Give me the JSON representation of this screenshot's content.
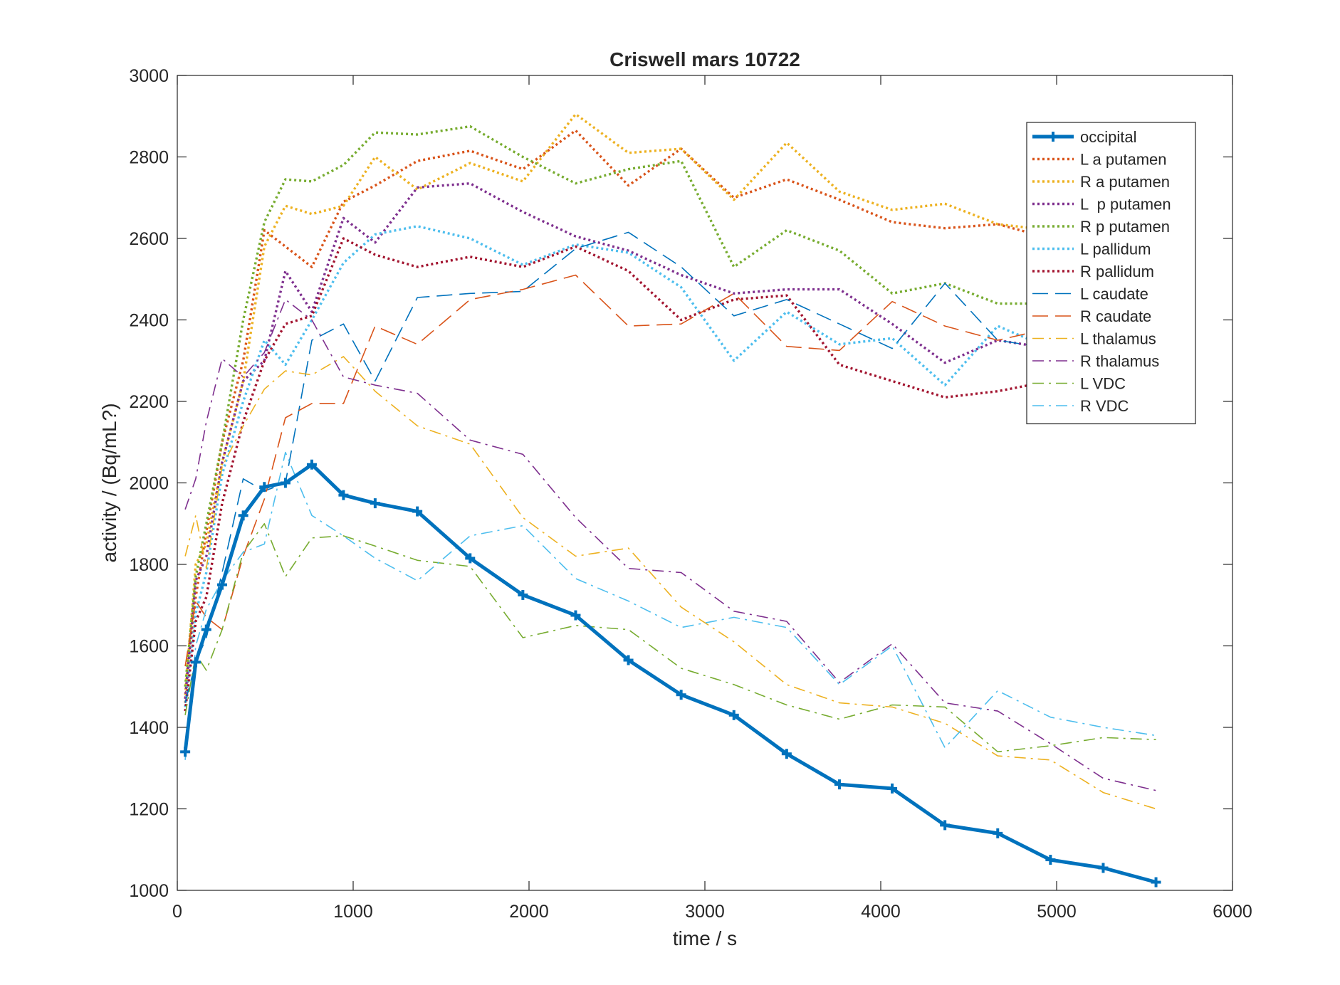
{
  "chart_data": {
    "type": "line",
    "title": "Criswell mars 10722",
    "xlabel": "time / s",
    "ylabel": "activity / (Bq/mL?)",
    "xlim": [
      0,
      6000
    ],
    "ylim": [
      1000,
      3000
    ],
    "xticks": [
      0,
      1000,
      2000,
      3000,
      4000,
      5000,
      6000
    ],
    "yticks": [
      1000,
      1200,
      1400,
      1600,
      1800,
      2000,
      2200,
      2400,
      2600,
      2800,
      3000
    ],
    "grid": false,
    "legend_position": "top-right",
    "x": [
      45,
      105,
      165,
      255,
      375,
      495,
      615,
      765,
      945,
      1125,
      1365,
      1665,
      1965,
      2265,
      2565,
      2865,
      3165,
      3465,
      3765,
      4065,
      4365,
      4665,
      4965,
      5265,
      5565
    ],
    "series": [
      {
        "name": "occipital",
        "color": "#0072BD",
        "style": "solid-bold-marker",
        "values": [
          1340,
          1560,
          1640,
          1750,
          1920,
          1990,
          2000,
          2045,
          1970,
          1950,
          1930,
          1815,
          1725,
          1675,
          1565,
          1480,
          1430,
          1335,
          1260,
          1250,
          1160,
          1140,
          1075,
          1055,
          1020
        ]
      },
      {
        "name": "L a putamen",
        "color": "#D95319",
        "style": "dotted",
        "values": [
          1460,
          1720,
          1880,
          2100,
          2300,
          2620,
          2580,
          2530,
          2690,
          2730,
          2790,
          2815,
          2770,
          2865,
          2730,
          2820,
          2700,
          2745,
          2695,
          2640,
          2625,
          2635,
          2600,
          2590,
          2580
        ]
      },
      {
        "name": "R a putamen",
        "color": "#EDB120",
        "style": "dotted",
        "values": [
          1480,
          1800,
          1850,
          2050,
          2250,
          2580,
          2680,
          2660,
          2680,
          2800,
          2720,
          2785,
          2740,
          2905,
          2810,
          2820,
          2695,
          2835,
          2715,
          2670,
          2685,
          2635,
          2620,
          2615,
          2600
        ]
      },
      {
        "name": "L  p putamen",
        "color": "#7E2F8E",
        "style": "dotted",
        "values": [
          1470,
          1760,
          1820,
          2050,
          2250,
          2300,
          2520,
          2420,
          2650,
          2590,
          2725,
          2735,
          2665,
          2605,
          2570,
          2510,
          2465,
          2475,
          2475,
          2390,
          2295,
          2350,
          2330,
          2310,
          2300
        ]
      },
      {
        "name": "R p putamen",
        "color": "#77AC30",
        "style": "dotted",
        "values": [
          1500,
          1770,
          1900,
          2100,
          2400,
          2640,
          2745,
          2740,
          2780,
          2860,
          2855,
          2875,
          2800,
          2735,
          2770,
          2790,
          2530,
          2620,
          2570,
          2465,
          2490,
          2440,
          2440,
          2430,
          2430
        ]
      },
      {
        "name": "L pallidum",
        "color": "#4DBEEE",
        "style": "dotted",
        "values": [
          1450,
          1680,
          1780,
          2020,
          2200,
          2350,
          2290,
          2400,
          2540,
          2610,
          2630,
          2600,
          2535,
          2585,
          2565,
          2480,
          2300,
          2420,
          2340,
          2355,
          2240,
          2385,
          2330,
          2310,
          2300
        ]
      },
      {
        "name": "R pallidum",
        "color": "#A2142F",
        "style": "dotted",
        "values": [
          1440,
          1660,
          1720,
          1950,
          2150,
          2300,
          2390,
          2410,
          2600,
          2560,
          2530,
          2555,
          2530,
          2580,
          2520,
          2400,
          2450,
          2460,
          2290,
          2250,
          2210,
          2225,
          2250,
          2240,
          2230
        ]
      },
      {
        "name": "L caudate",
        "color": "#0072BD",
        "style": "dashed",
        "values": [
          1460,
          1560,
          1620,
          1780,
          2010,
          1980,
          2000,
          2350,
          2390,
          2250,
          2455,
          2465,
          2470,
          2575,
          2615,
          2530,
          2410,
          2450,
          2390,
          2330,
          2490,
          2350,
          2330,
          2320,
          2310
        ]
      },
      {
        "name": "R caudate",
        "color": "#D95319",
        "style": "dashed",
        "values": [
          1550,
          1710,
          1670,
          1640,
          1820,
          1960,
          2160,
          2195,
          2195,
          2385,
          2340,
          2450,
          2475,
          2510,
          2385,
          2390,
          2465,
          2335,
          2325,
          2445,
          2385,
          2350,
          2380,
          2370,
          2360
        ]
      },
      {
        "name": "L thalamus",
        "color": "#EDB120",
        "style": "dashdot",
        "values": [
          1820,
          1920,
          1790,
          2040,
          2140,
          2230,
          2275,
          2265,
          2310,
          2225,
          2140,
          2095,
          1915,
          1820,
          1840,
          1695,
          1610,
          1505,
          1460,
          1450,
          1410,
          1330,
          1320,
          1240,
          1200
        ]
      },
      {
        "name": "R thalamus",
        "color": "#7E2F8E",
        "style": "dashdot",
        "values": [
          1935,
          2010,
          2150,
          2305,
          2260,
          2320,
          2450,
          2400,
          2260,
          2240,
          2220,
          2105,
          2070,
          1915,
          1790,
          1780,
          1685,
          1660,
          1510,
          1605,
          1460,
          1440,
          1360,
          1275,
          1245
        ]
      },
      {
        "name": "L VDC",
        "color": "#77AC30",
        "style": "dashdot",
        "values": [
          1430,
          1580,
          1540,
          1640,
          1830,
          1900,
          1770,
          1865,
          1870,
          1845,
          1810,
          1795,
          1620,
          1650,
          1640,
          1545,
          1505,
          1455,
          1420,
          1455,
          1450,
          1340,
          1355,
          1375,
          1370
        ]
      },
      {
        "name": "R VDC",
        "color": "#4DBEEE",
        "style": "dashdot",
        "values": [
          1320,
          1600,
          1690,
          1760,
          1830,
          1850,
          2075,
          1920,
          1870,
          1815,
          1760,
          1870,
          1895,
          1765,
          1710,
          1645,
          1670,
          1645,
          1505,
          1600,
          1350,
          1490,
          1425,
          1400,
          1380
        ]
      }
    ]
  }
}
